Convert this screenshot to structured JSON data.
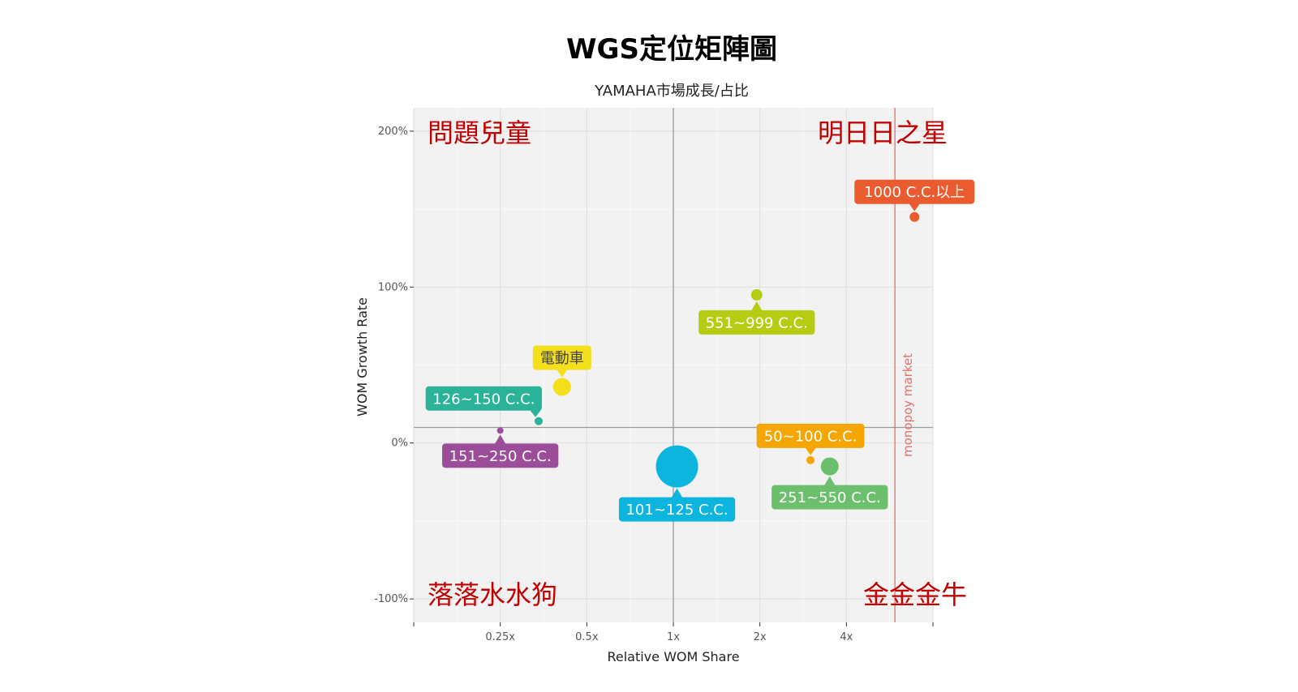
{
  "chart_data": {
    "type": "scatter",
    "title": "WGS定位矩陣圖",
    "subtitle": "YAMAHA市場成長/占比",
    "xlabel": "Relative WOM Share",
    "ylabel": "WOM Growth Rate",
    "x_scale": "log2",
    "x_ticks": [
      0.25,
      0.5,
      1,
      2,
      4
    ],
    "x_tick_labels": [
      "0.25x",
      "0.5x",
      "1x",
      "2x",
      "4x"
    ],
    "xlim": [
      0.125,
      8
    ],
    "y_ticks": [
      -100,
      0,
      100,
      200
    ],
    "y_tick_labels": [
      "-100%",
      "0%",
      "100%",
      "200%"
    ],
    "ylim": [
      -115,
      215
    ],
    "grid": true,
    "reference_lines": {
      "x_midline": 1,
      "y_midline": 10,
      "monopoly_x": 5.9,
      "monopoly_label": "monopoy market",
      "monopoly_color": "#e07070"
    },
    "quadrants": {
      "top_left": "問題兒童",
      "top_right": "明日日之星",
      "bottom_left": "落落水水狗",
      "bottom_right": "金金金牛",
      "color": "#c00000"
    },
    "points": [
      {
        "label": "1000 C.C.以上",
        "x": 6.9,
        "y": 145,
        "size": 6,
        "color": "#ea5b2f",
        "label_pos": "above"
      },
      {
        "label": "551~999 C.C.",
        "x": 1.95,
        "y": 95,
        "size": 7,
        "color": "#b6cc12",
        "label_pos": "below"
      },
      {
        "label": "電動車",
        "x": 0.41,
        "y": 36,
        "size": 11,
        "color": "#f4e01a",
        "label_pos": "above",
        "text_color": "#444444"
      },
      {
        "label": "126~150 C.C.",
        "x": 0.34,
        "y": 14,
        "size": 5,
        "color": "#2bb39a",
        "label_pos": "above-left"
      },
      {
        "label": "151~250 C.C.",
        "x": 0.25,
        "y": 8,
        "size": 4,
        "color": "#9c4d9a",
        "label_pos": "below"
      },
      {
        "label": "101~125 C.C.",
        "x": 1.03,
        "y": -15,
        "size": 26,
        "color": "#0bb5de",
        "label_pos": "below"
      },
      {
        "label": "50~100 C.C.",
        "x": 3.0,
        "y": -11,
        "size": 5,
        "color": "#f5a602",
        "label_pos": "above"
      },
      {
        "label": "251~550 C.C.",
        "x": 3.5,
        "y": -15,
        "size": 11,
        "color": "#6cbf6c",
        "label_pos": "below"
      }
    ]
  }
}
